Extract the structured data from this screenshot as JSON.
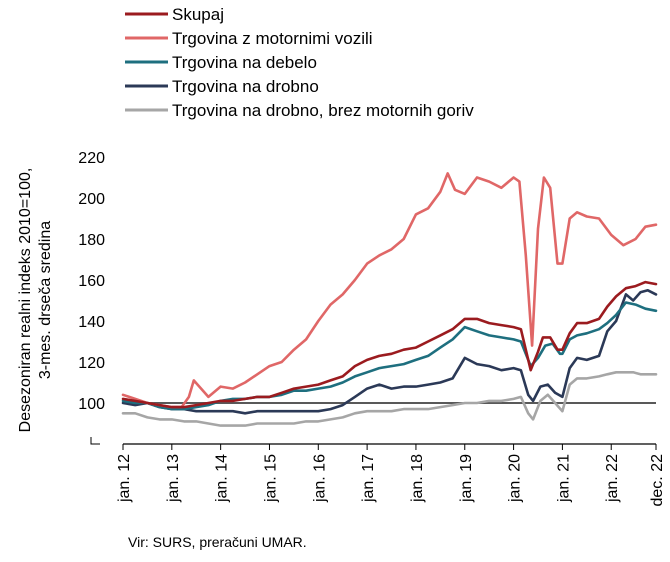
{
  "chart_data": {
    "type": "line",
    "ylabel": "Desezoniran realni indeks 2010=100, 3-mes. drseča sredina",
    "ylabel_lines": [
      "Desezoniran realni indeks 2010=100,",
      "3-mes. drseča sredina"
    ],
    "ylim": [
      80,
      220
    ],
    "yticks": [
      100,
      120,
      140,
      160,
      180,
      200,
      220
    ],
    "baseline": 100,
    "xlim": [
      2012.0,
      2022.917
    ],
    "xticks": [
      {
        "x": 2012,
        "label": "jan. 12"
      },
      {
        "x": 2013,
        "label": "jan. 13"
      },
      {
        "x": 2014,
        "label": "jan. 14"
      },
      {
        "x": 2015,
        "label": "jan. 15"
      },
      {
        "x": 2016,
        "label": "jan. 16"
      },
      {
        "x": 2017,
        "label": "jan. 17"
      },
      {
        "x": 2018,
        "label": "jan. 18"
      },
      {
        "x": 2019,
        "label": "jan. 19"
      },
      {
        "x": 2020,
        "label": "jan. 20"
      },
      {
        "x": 2021,
        "label": "jan. 21"
      },
      {
        "x": 2022,
        "label": "jan. 22"
      },
      {
        "x": 2022.917,
        "label": "dec. 22"
      }
    ],
    "legend_position": "top-left",
    "grid": false,
    "source": "Vir: SURS, preračuni UMAR.",
    "series": [
      {
        "name": "Skupaj",
        "color": "#9b1b1f",
        "points": [
          [
            2012.0,
            102
          ],
          [
            2012.25,
            101
          ],
          [
            2012.5,
            100
          ],
          [
            2012.75,
            99
          ],
          [
            2013.0,
            98
          ],
          [
            2013.25,
            98
          ],
          [
            2013.5,
            99
          ],
          [
            2013.75,
            100
          ],
          [
            2014.0,
            101
          ],
          [
            2014.25,
            101
          ],
          [
            2014.5,
            102
          ],
          [
            2014.75,
            103
          ],
          [
            2015.0,
            103
          ],
          [
            2015.25,
            105
          ],
          [
            2015.5,
            107
          ],
          [
            2015.75,
            108
          ],
          [
            2016.0,
            109
          ],
          [
            2016.25,
            111
          ],
          [
            2016.5,
            113
          ],
          [
            2016.75,
            118
          ],
          [
            2017.0,
            121
          ],
          [
            2017.25,
            123
          ],
          [
            2017.5,
            124
          ],
          [
            2017.75,
            126
          ],
          [
            2018.0,
            127
          ],
          [
            2018.25,
            130
          ],
          [
            2018.5,
            133
          ],
          [
            2018.75,
            136
          ],
          [
            2019.0,
            141
          ],
          [
            2019.25,
            141
          ],
          [
            2019.5,
            139
          ],
          [
            2019.75,
            138
          ],
          [
            2020.0,
            137
          ],
          [
            2020.15,
            136
          ],
          [
            2020.35,
            116
          ],
          [
            2020.5,
            125
          ],
          [
            2020.6,
            132
          ],
          [
            2020.75,
            132
          ],
          [
            2020.9,
            126
          ],
          [
            2021.0,
            126
          ],
          [
            2021.15,
            134
          ],
          [
            2021.3,
            139
          ],
          [
            2021.5,
            139
          ],
          [
            2021.75,
            141
          ],
          [
            2021.92,
            147
          ],
          [
            2022.1,
            152
          ],
          [
            2022.3,
            156
          ],
          [
            2022.5,
            157
          ],
          [
            2022.7,
            159
          ],
          [
            2022.917,
            158
          ]
        ]
      },
      {
        "name": "Trgovina z motornimi vozili",
        "color": "#e06767",
        "points": [
          [
            2012.0,
            104
          ],
          [
            2012.25,
            102
          ],
          [
            2012.5,
            100
          ],
          [
            2012.75,
            99
          ],
          [
            2013.0,
            98
          ],
          [
            2013.2,
            98
          ],
          [
            2013.35,
            103
          ],
          [
            2013.45,
            111
          ],
          [
            2013.6,
            107
          ],
          [
            2013.75,
            103
          ],
          [
            2014.0,
            108
          ],
          [
            2014.25,
            107
          ],
          [
            2014.5,
            110
          ],
          [
            2014.75,
            114
          ],
          [
            2015.0,
            118
          ],
          [
            2015.25,
            120
          ],
          [
            2015.5,
            126
          ],
          [
            2015.75,
            131
          ],
          [
            2016.0,
            140
          ],
          [
            2016.25,
            148
          ],
          [
            2016.5,
            153
          ],
          [
            2016.75,
            160
          ],
          [
            2017.0,
            168
          ],
          [
            2017.25,
            172
          ],
          [
            2017.5,
            175
          ],
          [
            2017.75,
            180
          ],
          [
            2018.0,
            192
          ],
          [
            2018.25,
            195
          ],
          [
            2018.5,
            203
          ],
          [
            2018.65,
            212
          ],
          [
            2018.8,
            204
          ],
          [
            2019.0,
            202
          ],
          [
            2019.25,
            210
          ],
          [
            2019.5,
            208
          ],
          [
            2019.75,
            205
          ],
          [
            2020.0,
            210
          ],
          [
            2020.12,
            208
          ],
          [
            2020.25,
            172
          ],
          [
            2020.38,
            128
          ],
          [
            2020.5,
            185
          ],
          [
            2020.62,
            210
          ],
          [
            2020.75,
            205
          ],
          [
            2020.9,
            168
          ],
          [
            2021.0,
            168
          ],
          [
            2021.15,
            190
          ],
          [
            2021.3,
            193
          ],
          [
            2021.5,
            191
          ],
          [
            2021.75,
            190
          ],
          [
            2022.0,
            182
          ],
          [
            2022.25,
            177
          ],
          [
            2022.5,
            180
          ],
          [
            2022.7,
            186
          ],
          [
            2022.917,
            187
          ]
        ]
      },
      {
        "name": "Trgovina na debelo",
        "color": "#1e6f7f",
        "points": [
          [
            2012.0,
            101
          ],
          [
            2012.25,
            100
          ],
          [
            2012.5,
            100
          ],
          [
            2012.75,
            98
          ],
          [
            2013.0,
            97
          ],
          [
            2013.25,
            97
          ],
          [
            2013.5,
            98
          ],
          [
            2013.75,
            99
          ],
          [
            2014.0,
            101
          ],
          [
            2014.25,
            102
          ],
          [
            2014.5,
            102
          ],
          [
            2014.75,
            103
          ],
          [
            2015.0,
            103
          ],
          [
            2015.25,
            104
          ],
          [
            2015.5,
            106
          ],
          [
            2015.75,
            106
          ],
          [
            2016.0,
            107
          ],
          [
            2016.25,
            108
          ],
          [
            2016.5,
            110
          ],
          [
            2016.75,
            113
          ],
          [
            2017.0,
            115
          ],
          [
            2017.25,
            117
          ],
          [
            2017.5,
            118
          ],
          [
            2017.75,
            119
          ],
          [
            2018.0,
            121
          ],
          [
            2018.25,
            123
          ],
          [
            2018.5,
            127
          ],
          [
            2018.75,
            131
          ],
          [
            2019.0,
            137
          ],
          [
            2019.25,
            135
          ],
          [
            2019.5,
            133
          ],
          [
            2019.75,
            132
          ],
          [
            2020.0,
            131
          ],
          [
            2020.15,
            130
          ],
          [
            2020.35,
            118
          ],
          [
            2020.5,
            122
          ],
          [
            2020.65,
            128
          ],
          [
            2020.8,
            129
          ],
          [
            2020.95,
            124
          ],
          [
            2021.0,
            124
          ],
          [
            2021.15,
            131
          ],
          [
            2021.3,
            133
          ],
          [
            2021.5,
            134
          ],
          [
            2021.75,
            136
          ],
          [
            2021.92,
            139
          ],
          [
            2022.1,
            143
          ],
          [
            2022.3,
            149
          ],
          [
            2022.5,
            148
          ],
          [
            2022.7,
            146
          ],
          [
            2022.917,
            145
          ]
        ]
      },
      {
        "name": "Trgovina na drobno",
        "color": "#2b3957",
        "points": [
          [
            2012.0,
            100
          ],
          [
            2012.25,
            99
          ],
          [
            2012.5,
            100
          ],
          [
            2012.75,
            98
          ],
          [
            2013.0,
            97
          ],
          [
            2013.25,
            97
          ],
          [
            2013.5,
            96
          ],
          [
            2013.75,
            96
          ],
          [
            2014.0,
            96
          ],
          [
            2014.25,
            96
          ],
          [
            2014.5,
            95
          ],
          [
            2014.75,
            96
          ],
          [
            2015.0,
            96
          ],
          [
            2015.25,
            96
          ],
          [
            2015.5,
            96
          ],
          [
            2015.75,
            96
          ],
          [
            2016.0,
            96
          ],
          [
            2016.25,
            97
          ],
          [
            2016.5,
            99
          ],
          [
            2016.75,
            103
          ],
          [
            2017.0,
            107
          ],
          [
            2017.25,
            109
          ],
          [
            2017.5,
            107
          ],
          [
            2017.75,
            108
          ],
          [
            2018.0,
            108
          ],
          [
            2018.25,
            109
          ],
          [
            2018.5,
            110
          ],
          [
            2018.75,
            112
          ],
          [
            2019.0,
            122
          ],
          [
            2019.25,
            119
          ],
          [
            2019.5,
            118
          ],
          [
            2019.75,
            116
          ],
          [
            2020.0,
            117
          ],
          [
            2020.15,
            116
          ],
          [
            2020.3,
            104
          ],
          [
            2020.4,
            101
          ],
          [
            2020.55,
            108
          ],
          [
            2020.7,
            109
          ],
          [
            2020.85,
            105
          ],
          [
            2021.0,
            103
          ],
          [
            2021.15,
            117
          ],
          [
            2021.3,
            122
          ],
          [
            2021.5,
            121
          ],
          [
            2021.75,
            123
          ],
          [
            2021.92,
            135
          ],
          [
            2022.1,
            140
          ],
          [
            2022.3,
            153
          ],
          [
            2022.45,
            150
          ],
          [
            2022.6,
            154
          ],
          [
            2022.75,
            155
          ],
          [
            2022.917,
            153
          ]
        ]
      },
      {
        "name": "Trgovina na drobno, brez motornih goriv",
        "color": "#a6a6a6",
        "points": [
          [
            2012.0,
            95
          ],
          [
            2012.25,
            95
          ],
          [
            2012.5,
            93
          ],
          [
            2012.75,
            92
          ],
          [
            2013.0,
            92
          ],
          [
            2013.25,
            91
          ],
          [
            2013.5,
            91
          ],
          [
            2013.75,
            90
          ],
          [
            2014.0,
            89
          ],
          [
            2014.25,
            89
          ],
          [
            2014.5,
            89
          ],
          [
            2014.75,
            90
          ],
          [
            2015.0,
            90
          ],
          [
            2015.25,
            90
          ],
          [
            2015.5,
            90
          ],
          [
            2015.75,
            91
          ],
          [
            2016.0,
            91
          ],
          [
            2016.25,
            92
          ],
          [
            2016.5,
            93
          ],
          [
            2016.75,
            95
          ],
          [
            2017.0,
            96
          ],
          [
            2017.25,
            96
          ],
          [
            2017.5,
            96
          ],
          [
            2017.75,
            97
          ],
          [
            2018.0,
            97
          ],
          [
            2018.25,
            97
          ],
          [
            2018.5,
            98
          ],
          [
            2018.75,
            99
          ],
          [
            2019.0,
            100
          ],
          [
            2019.25,
            100
          ],
          [
            2019.5,
            101
          ],
          [
            2019.75,
            101
          ],
          [
            2020.0,
            102
          ],
          [
            2020.15,
            103
          ],
          [
            2020.3,
            95
          ],
          [
            2020.4,
            92
          ],
          [
            2020.55,
            101
          ],
          [
            2020.7,
            104
          ],
          [
            2020.85,
            100
          ],
          [
            2021.0,
            96
          ],
          [
            2021.15,
            109
          ],
          [
            2021.3,
            112
          ],
          [
            2021.5,
            112
          ],
          [
            2021.75,
            113
          ],
          [
            2021.92,
            114
          ],
          [
            2022.1,
            115
          ],
          [
            2022.3,
            115
          ],
          [
            2022.45,
            115
          ],
          [
            2022.6,
            114
          ],
          [
            2022.75,
            114
          ],
          [
            2022.917,
            114
          ]
        ]
      }
    ]
  }
}
